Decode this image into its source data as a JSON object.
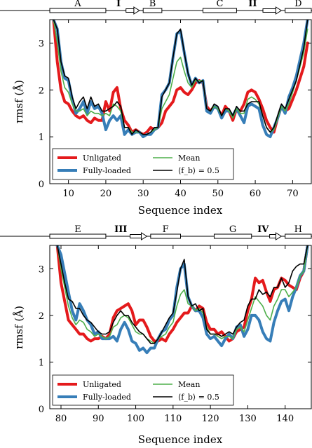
{
  "chart_data": [
    {
      "type": "line",
      "xlabel": "Sequence index",
      "ylabel": "rmsf (Å)",
      "xlim": [
        5,
        75
      ],
      "ylim": [
        0,
        3.5
      ],
      "xticks": [
        10,
        20,
        30,
        40,
        50,
        60,
        70
      ],
      "yticks": [
        0,
        1,
        2,
        3
      ],
      "secondary_structure": {
        "strands": [
          {
            "label": "A",
            "start": 5,
            "end": 20
          },
          {
            "label": "B",
            "start": 30,
            "end": 35
          },
          {
            "label": "C",
            "start": 46,
            "end": 55
          },
          {
            "label": "D",
            "start": 68,
            "end": 75
          }
        ],
        "helices": [
          {
            "label": "I",
            "start": 21,
            "end": 29
          },
          {
            "label": "II",
            "start": 56,
            "end": 67
          }
        ]
      },
      "legend": [
        "Unligated",
        "Fully-loaded",
        "Mean",
        "⟨f_b⟩ = 0.5"
      ],
      "x": [
        6,
        7,
        8,
        9,
        10,
        11,
        12,
        13,
        14,
        15,
        16,
        17,
        18,
        19,
        20,
        21,
        22,
        23,
        24,
        25,
        26,
        27,
        28,
        29,
        30,
        31,
        32,
        33,
        34,
        35,
        36,
        37,
        38,
        39,
        40,
        41,
        42,
        43,
        44,
        45,
        46,
        47,
        48,
        49,
        50,
        51,
        52,
        53,
        54,
        55,
        56,
        57,
        58,
        59,
        60,
        61,
        62,
        63,
        64,
        65,
        66,
        67,
        68,
        69,
        70,
        71,
        72,
        73,
        74
      ],
      "series": [
        {
          "name": "Unligated",
          "color": "#e41a1c",
          "width": 4,
          "values": [
            3.5,
            2.6,
            2.0,
            1.75,
            1.7,
            1.55,
            1.45,
            1.4,
            1.45,
            1.35,
            1.3,
            1.4,
            1.35,
            1.35,
            1.75,
            1.55,
            1.95,
            2.05,
            1.6,
            1.35,
            1.25,
            1.1,
            1.15,
            1.1,
            1.05,
            1.1,
            1.2,
            1.15,
            1.2,
            1.3,
            1.55,
            1.65,
            1.75,
            2.0,
            2.05,
            1.95,
            1.9,
            2.0,
            2.15,
            2.2,
            2.15,
            1.65,
            1.55,
            1.65,
            1.6,
            1.45,
            1.65,
            1.55,
            1.35,
            1.6,
            1.55,
            1.7,
            1.95,
            2.0,
            1.95,
            1.8,
            1.6,
            1.35,
            1.2,
            1.1,
            1.4,
            1.65,
            1.55,
            1.6,
            1.8,
            2.0,
            2.25,
            2.5,
            3.0
          ]
        },
        {
          "name": "Fully-loaded",
          "color": "#377eb8",
          "width": 4,
          "values": [
            3.5,
            3.3,
            2.6,
            2.25,
            2.2,
            1.8,
            1.5,
            1.6,
            1.75,
            1.5,
            1.75,
            1.6,
            1.65,
            1.5,
            1.15,
            1.35,
            1.45,
            1.35,
            1.45,
            1.05,
            1.15,
            1.05,
            1.1,
            1.1,
            1.0,
            1.05,
            1.05,
            1.15,
            1.2,
            1.9,
            2.0,
            2.15,
            2.7,
            3.2,
            3.25,
            2.8,
            2.35,
            2.1,
            2.25,
            2.15,
            2.2,
            1.55,
            1.5,
            1.65,
            1.6,
            1.4,
            1.55,
            1.55,
            1.45,
            1.6,
            1.45,
            1.3,
            1.65,
            1.7,
            1.65,
            1.6,
            1.25,
            1.05,
            1.0,
            1.2,
            1.4,
            1.65,
            1.5,
            1.85,
            2.05,
            2.3,
            2.65,
            3.0,
            3.5
          ]
        },
        {
          "name": "Mean",
          "color": "#4daf4a",
          "width": 1.6,
          "values": [
            3.5,
            3.0,
            2.4,
            2.05,
            1.95,
            1.7,
            1.55,
            1.55,
            1.6,
            1.45,
            1.55,
            1.5,
            1.5,
            1.45,
            1.5,
            1.45,
            1.7,
            1.65,
            1.55,
            1.2,
            1.2,
            1.1,
            1.1,
            1.1,
            1.05,
            1.05,
            1.1,
            1.15,
            1.2,
            1.6,
            1.75,
            1.9,
            2.25,
            2.6,
            2.7,
            2.4,
            2.15,
            2.05,
            2.2,
            2.2,
            2.2,
            1.6,
            1.55,
            1.65,
            1.6,
            1.45,
            1.6,
            1.55,
            1.4,
            1.6,
            1.5,
            1.5,
            1.8,
            1.85,
            1.8,
            1.7,
            1.45,
            1.2,
            1.1,
            1.15,
            1.4,
            1.65,
            1.55,
            1.7,
            1.95,
            2.2,
            2.5,
            2.8,
            3.3
          ]
        },
        {
          "name": "⟨f_b⟩ = 0.5",
          "color": "#000000",
          "width": 1.6,
          "values": [
            3.5,
            3.3,
            2.6,
            2.3,
            2.25,
            1.85,
            1.6,
            1.75,
            1.85,
            1.6,
            1.85,
            1.65,
            1.7,
            1.55,
            1.55,
            1.6,
            1.65,
            1.75,
            1.65,
            1.2,
            1.2,
            1.05,
            1.15,
            1.1,
            1.05,
            1.05,
            1.1,
            1.2,
            1.2,
            1.85,
            2.0,
            2.15,
            2.7,
            3.2,
            3.3,
            2.8,
            2.35,
            2.1,
            2.25,
            2.15,
            2.2,
            1.6,
            1.55,
            1.7,
            1.65,
            1.45,
            1.6,
            1.6,
            1.45,
            1.65,
            1.55,
            1.55,
            1.7,
            1.75,
            1.75,
            1.75,
            1.45,
            1.2,
            1.1,
            1.2,
            1.45,
            1.7,
            1.6,
            1.8,
            2.0,
            2.2,
            2.55,
            2.9,
            3.5
          ]
        }
      ]
    },
    {
      "type": "line",
      "xlabel": "Sequence index",
      "ylabel": "rmsf (Å)",
      "xlim": [
        77,
        147
      ],
      "ylim": [
        0,
        3.5
      ],
      "xticks": [
        80,
        90,
        100,
        110,
        120,
        130,
        140
      ],
      "yticks": [
        0,
        1,
        2,
        3
      ],
      "secondary_structure": {
        "strands": [
          {
            "label": "E",
            "start": 77,
            "end": 92
          },
          {
            "label": "F",
            "start": 104,
            "end": 112
          },
          {
            "label": "G",
            "start": 121,
            "end": 131
          },
          {
            "label": "H",
            "start": 140,
            "end": 147
          }
        ],
        "helices": [
          {
            "label": "III",
            "start": 93,
            "end": 103
          },
          {
            "label": "IV",
            "start": 132,
            "end": 139
          }
        ]
      },
      "legend": [
        "Unligated",
        "Fully-loaded",
        "Mean",
        "⟨f_b⟩ = 0.5"
      ],
      "x": [
        79,
        80,
        81,
        82,
        83,
        84,
        85,
        86,
        87,
        88,
        89,
        90,
        91,
        92,
        93,
        94,
        95,
        96,
        97,
        98,
        99,
        100,
        101,
        102,
        103,
        104,
        105,
        106,
        107,
        108,
        109,
        110,
        111,
        112,
        113,
        114,
        115,
        116,
        117,
        118,
        119,
        120,
        121,
        122,
        123,
        124,
        125,
        126,
        127,
        128,
        129,
        130,
        131,
        132,
        133,
        134,
        135,
        136,
        137,
        138,
        139,
        140,
        141,
        142,
        143,
        144,
        145,
        146
      ],
      "series": [
        {
          "name": "Unligated",
          "color": "#e41a1c",
          "width": 4,
          "values": [
            3.5,
            2.7,
            2.3,
            1.9,
            1.8,
            1.7,
            1.6,
            1.6,
            1.5,
            1.45,
            1.5,
            1.5,
            1.55,
            1.5,
            1.6,
            1.95,
            2.1,
            2.15,
            2.2,
            2.25,
            2.1,
            1.8,
            1.9,
            1.9,
            1.75,
            1.55,
            1.45,
            1.45,
            1.5,
            1.45,
            1.6,
            1.7,
            1.85,
            1.95,
            2.05,
            2.05,
            2.2,
            2.1,
            2.2,
            2.15,
            1.85,
            1.7,
            1.7,
            1.6,
            1.65,
            1.55,
            1.45,
            1.5,
            1.65,
            1.7,
            1.75,
            2.1,
            2.35,
            2.8,
            2.7,
            2.75,
            2.5,
            2.3,
            2.55,
            2.6,
            2.8,
            2.75,
            2.65,
            2.6,
            2.55,
            2.8,
            2.95,
            3.5
          ]
        },
        {
          "name": "Fully-loaded",
          "color": "#377eb8",
          "width": 4,
          "values": [
            3.5,
            3.3,
            2.9,
            2.5,
            2.1,
            1.9,
            2.25,
            2.1,
            1.9,
            1.8,
            1.6,
            1.65,
            1.5,
            1.5,
            1.5,
            1.55,
            1.45,
            1.7,
            1.85,
            1.7,
            1.45,
            1.4,
            1.25,
            1.3,
            1.2,
            1.3,
            1.3,
            1.5,
            1.65,
            1.7,
            1.9,
            2.0,
            2.6,
            3.0,
            3.1,
            2.4,
            2.2,
            2.1,
            2.1,
            1.95,
            1.6,
            1.5,
            1.55,
            1.45,
            1.35,
            1.5,
            1.6,
            1.5,
            1.75,
            1.8,
            1.55,
            1.7,
            2.0,
            2.0,
            1.9,
            1.65,
            1.5,
            1.45,
            1.85,
            2.1,
            2.3,
            2.35,
            2.1,
            2.4,
            2.6,
            2.85,
            2.95,
            3.5
          ]
        },
        {
          "name": "Mean",
          "color": "#4daf4a",
          "width": 1.6,
          "values": [
            3.5,
            3.0,
            2.6,
            2.2,
            1.95,
            1.8,
            1.9,
            1.85,
            1.7,
            1.65,
            1.55,
            1.6,
            1.55,
            1.5,
            1.55,
            1.75,
            1.8,
            1.95,
            2.0,
            1.95,
            1.8,
            1.65,
            1.6,
            1.6,
            1.5,
            1.45,
            1.4,
            1.5,
            1.55,
            1.6,
            1.75,
            1.85,
            2.2,
            2.45,
            2.55,
            2.25,
            2.2,
            2.1,
            2.15,
            2.05,
            1.75,
            1.6,
            1.6,
            1.55,
            1.5,
            1.55,
            1.55,
            1.5,
            1.7,
            1.75,
            1.65,
            1.9,
            2.15,
            2.4,
            2.3,
            2.2,
            2.0,
            1.9,
            2.2,
            2.35,
            2.55,
            2.55,
            2.4,
            2.5,
            2.6,
            2.85,
            2.95,
            3.5
          ]
        },
        {
          "name": "⟨f_b⟩ = 0.5",
          "color": "#000000",
          "width": 1.6,
          "values": [
            3.5,
            3.1,
            2.7,
            2.35,
            2.3,
            2.15,
            2.15,
            2.0,
            1.9,
            1.85,
            1.75,
            1.65,
            1.6,
            1.6,
            1.65,
            1.85,
            2.0,
            2.1,
            2.0,
            2.0,
            1.85,
            1.75,
            1.65,
            1.6,
            1.5,
            1.4,
            1.4,
            1.5,
            1.65,
            1.8,
            1.95,
            2.05,
            2.5,
            3.0,
            3.2,
            2.4,
            2.2,
            2.25,
            2.1,
            2.15,
            1.7,
            1.6,
            1.6,
            1.6,
            1.55,
            1.6,
            1.65,
            1.6,
            1.75,
            1.85,
            1.9,
            2.2,
            2.35,
            2.35,
            2.55,
            2.45,
            2.5,
            2.4,
            2.6,
            2.6,
            2.8,
            2.6,
            2.7,
            2.95,
            3.05,
            3.1,
            3.1,
            3.5
          ]
        }
      ]
    }
  ]
}
